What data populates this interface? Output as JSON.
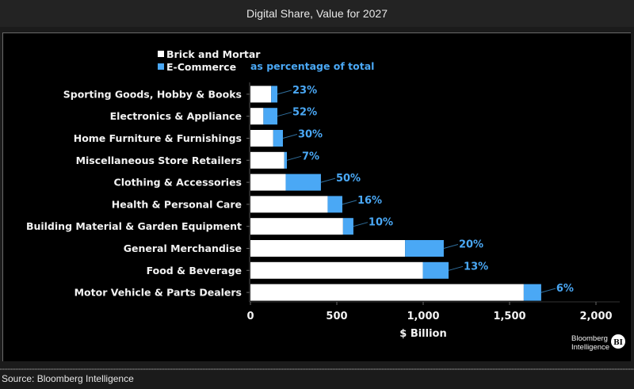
{
  "header": {
    "title": "Digital Share, Value for 2027"
  },
  "footer": {
    "source": "Source: Bloomberg Intelligence"
  },
  "branding": {
    "line1": "Bloomberg",
    "line2": "Intelligence",
    "badge": "BI"
  },
  "colors": {
    "brick": "#ffffff",
    "ecommerce": "#4aa8f5",
    "background": "#000000"
  },
  "chart_data": {
    "type": "bar",
    "orientation": "horizontal",
    "stacked": true,
    "title": "Digital Share, Value for 2027",
    "xlabel": "$ Billion",
    "ylabel": "",
    "xlim": [
      0,
      2000
    ],
    "xticks": [
      0,
      500,
      1000,
      1500,
      2000
    ],
    "xtick_labels": [
      "0",
      "500",
      "1,000",
      "1,500",
      "2,000"
    ],
    "grid": false,
    "legend": {
      "placement": "top-center",
      "entries": [
        "Brick and Mortar",
        "E-Commerce"
      ],
      "note": "as percentage of total"
    },
    "categories": [
      "Sporting Goods, Hobby & Books",
      "Electronics & Appliance",
      "Home Furniture & Furnishings",
      "Miscellaneous Store Retailers",
      "Clothing & Accessories",
      "Health & Personal Care",
      "Building Material & Garden Equipment",
      "General Merchandise",
      "Food & Beverage",
      "Motor Vehicle & Parts Dealers"
    ],
    "series": [
      {
        "name": "Brick and Mortar",
        "values": [
          120,
          75,
          132,
          196,
          204,
          447,
          536,
          895,
          998,
          1582
        ]
      },
      {
        "name": "E-Commerce",
        "values": [
          36,
          81,
          56,
          15,
          204,
          85,
          60,
          224,
          149,
          101
        ]
      }
    ],
    "annotations": [
      "23%",
      "52%",
      "30%",
      "7%",
      "50%",
      "16%",
      "10%",
      "20%",
      "13%",
      "6%"
    ]
  }
}
